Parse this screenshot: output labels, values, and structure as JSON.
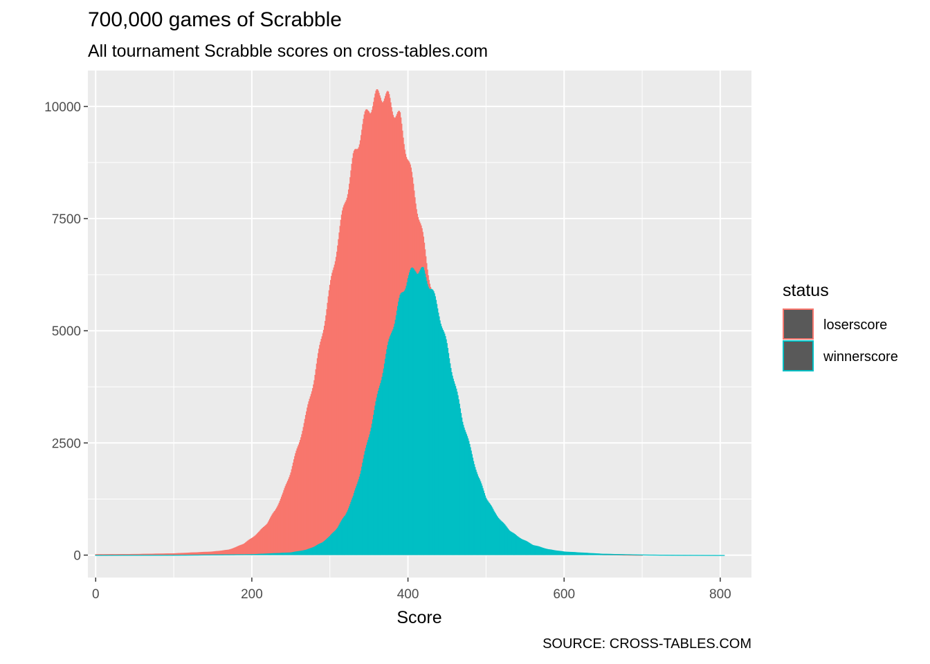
{
  "title": "700,000 games of Scrabble",
  "subtitle": "All tournament Scrabble scores on cross-tables.com",
  "caption": "SOURCE: CROSS-TABLES.COM",
  "chart_data": {
    "type": "bar",
    "subtype": "histogram (overlaid)",
    "xlabel": "Score",
    "ylabel": "",
    "xlim": [
      -10,
      840
    ],
    "ylim": [
      -500,
      10800
    ],
    "x_ticks": [
      0,
      200,
      400,
      600,
      800
    ],
    "x_tick_labels": [
      "0",
      "200",
      "400",
      "600",
      "800"
    ],
    "y_ticks": [
      0,
      2500,
      5000,
      7500,
      10000
    ],
    "y_tick_labels": [
      "0",
      "2500",
      "5000",
      "7500",
      "10000"
    ],
    "grid": true,
    "legend_position": "right",
    "legend": {
      "title": "status",
      "entries": [
        {
          "label": "loserscore",
          "color": "#F8766D"
        },
        {
          "label": "winnerscore",
          "color": "#00BFC4"
        }
      ]
    },
    "series": [
      {
        "name": "loserscore",
        "color": "#F8766D",
        "x": [
          0,
          50,
          100,
          150,
          170,
          180,
          190,
          200,
          210,
          220,
          230,
          240,
          250,
          260,
          270,
          280,
          290,
          300,
          310,
          320,
          330,
          340,
          350,
          360,
          365,
          370,
          375,
          380,
          390,
          400,
          410,
          420,
          430,
          440,
          450,
          460,
          470,
          480,
          490,
          500,
          520,
          540,
          560,
          600,
          650,
          700
        ],
        "y": [
          20,
          25,
          40,
          80,
          120,
          180,
          260,
          380,
          530,
          720,
          1000,
          1370,
          1870,
          2470,
          3150,
          3950,
          4900,
          5920,
          6980,
          7930,
          8800,
          9450,
          9980,
          10200,
          10300,
          10250,
          10150,
          10000,
          9700,
          8850,
          7940,
          6980,
          5930,
          5080,
          3840,
          2900,
          2080,
          1520,
          1090,
          770,
          420,
          240,
          130,
          50,
          15,
          5
        ]
      },
      {
        "name": "winnerscore",
        "color": "#00BFC4",
        "x": [
          0,
          100,
          200,
          250,
          270,
          280,
          290,
          300,
          310,
          320,
          330,
          340,
          350,
          360,
          370,
          380,
          390,
          400,
          410,
          420,
          430,
          440,
          450,
          460,
          470,
          480,
          490,
          500,
          510,
          520,
          530,
          540,
          560,
          580,
          600,
          650,
          700,
          750,
          800
        ],
        "y": [
          3,
          6,
          20,
          60,
          120,
          190,
          280,
          420,
          620,
          900,
          1300,
          1900,
          2650,
          3450,
          4300,
          5050,
          5700,
          6200,
          6400,
          6300,
          5950,
          5400,
          4650,
          3820,
          3020,
          2370,
          1750,
          1300,
          980,
          750,
          560,
          420,
          230,
          130,
          80,
          30,
          12,
          5,
          2
        ]
      }
    ]
  }
}
